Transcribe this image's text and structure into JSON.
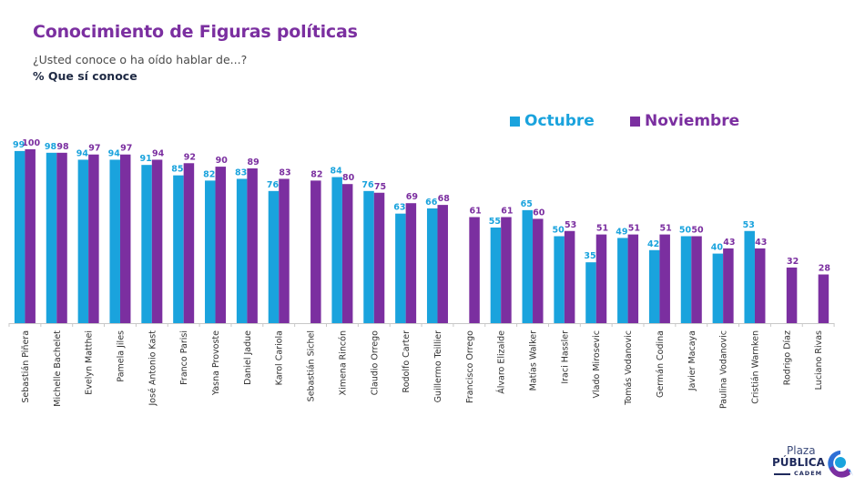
{
  "header": {
    "title": "Conocimiento de Figuras políticas",
    "subtitle": "¿Usted conoce o ha oído hablar de...?",
    "measure": "% Que sí conoce"
  },
  "logo": {
    "line1": "Plaza",
    "line2": "PÚBLICA",
    "line3": "CADEM"
  },
  "colors": {
    "octubre": "#1aa3dd",
    "noviembre": "#7b2fa0",
    "title": "#7b2fa0"
  },
  "chart_data": {
    "type": "bar",
    "title": "Conocimiento de Figuras políticas",
    "xlabel": "",
    "ylabel": "% Que sí conoce",
    "ylim": [
      0,
      100
    ],
    "grid": false,
    "legend_position": "top-right",
    "categories": [
      "Sebastián Piñera",
      "Michelle Bachelet",
      "Evelyn Matthei",
      "Pamela Jiles",
      "José Antonio Kast",
      "Franco Parisi",
      "Yasna Provoste",
      "Daniel Jadue",
      "Karol Cariola",
      "Sebastián Sichel",
      "Ximena Rincón",
      "Claudio Orrego",
      "Rodolfo Carter",
      "Guillermo Teillier",
      "Francisco Orrego",
      "Álvaro Elizalde",
      "Matías Walker",
      "Iraci Hassler",
      "Vlado Mirosevic",
      "Tomás Vodanovic",
      "Germán Codina",
      "Javier Macaya",
      "Paulina Vodanovic",
      "Cristián Warnken",
      "Rodrigo Díaz",
      "Luciano Rivas"
    ],
    "series": [
      {
        "name": "Octubre",
        "values": [
          99,
          98,
          94,
          94,
          91,
          85,
          82,
          83,
          76,
          null,
          84,
          76,
          63,
          66,
          null,
          55,
          65,
          50,
          35,
          49,
          42,
          50,
          40,
          53,
          null,
          null
        ]
      },
      {
        "name": "Noviembre",
        "values": [
          100,
          98,
          97,
          97,
          94,
          92,
          90,
          89,
          83,
          82,
          80,
          75,
          69,
          68,
          61,
          61,
          60,
          53,
          51,
          51,
          51,
          50,
          43,
          43,
          32,
          28
        ]
      }
    ]
  }
}
